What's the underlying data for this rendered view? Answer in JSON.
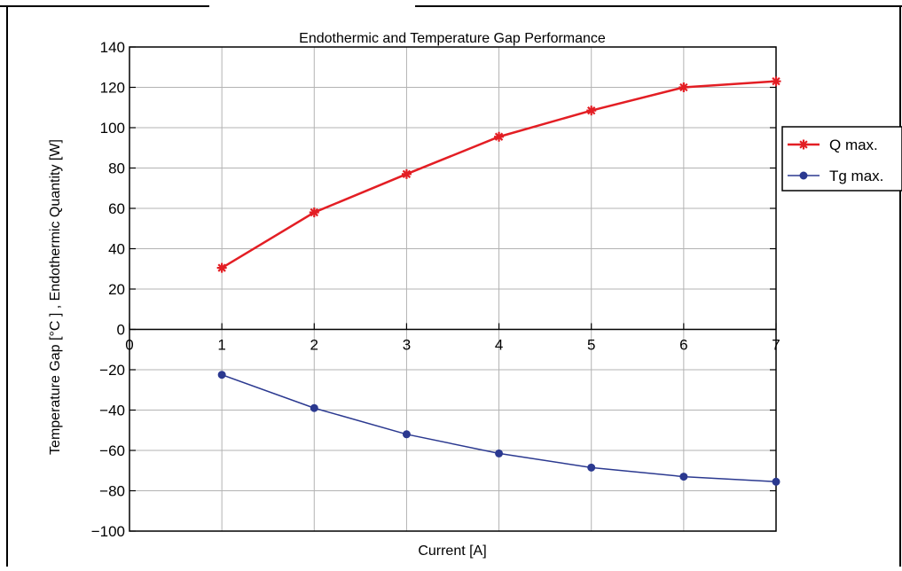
{
  "chart_data": {
    "type": "line",
    "title": "Endothermic and Temperature Gap Performance",
    "xlabel": "Current [A]",
    "ylabel": "Temperature Gap  [°C ] ,  Endothermic Quantity  [W]",
    "x": [
      1,
      2,
      3,
      4,
      5,
      6,
      7
    ],
    "xlim": [
      0,
      7
    ],
    "ylim": [
      -100,
      140
    ],
    "xticks": [
      0,
      1,
      2,
      3,
      4,
      5,
      6,
      7
    ],
    "yticks": [
      140,
      120,
      100,
      80,
      60,
      40,
      20,
      0,
      -20,
      -40,
      -60,
      -80,
      -100
    ],
    "ytick_labels": [
      "140",
      "120",
      "100",
      "80",
      "60",
      "40",
      "20",
      "0",
      "−20",
      "−40",
      "−60",
      "−80",
      "−100"
    ],
    "grid": true,
    "legend_position": "right",
    "series": [
      {
        "name": "Q max.",
        "values": [
          30.5,
          58,
          77,
          95.5,
          108.5,
          120,
          123
        ],
        "color": "#e31e24",
        "marker": "star"
      },
      {
        "name": "Tg max.",
        "values": [
          -22.5,
          -39,
          -52,
          -61.5,
          -68.5,
          -73,
          -75.5
        ],
        "color": "#2b3990",
        "marker": "circle"
      }
    ]
  }
}
